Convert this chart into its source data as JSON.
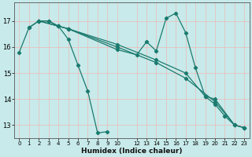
{
  "xlabel": "Humidex (Indice chaleur)",
  "background_color": "#c8eaea",
  "line_color": "#1a7a6e",
  "grid_color": "#f0b8b8",
  "xlim": [
    -0.5,
    23.5
  ],
  "ylim": [
    12.5,
    17.7
  ],
  "yticks": [
    13,
    14,
    15,
    16,
    17
  ],
  "xtick_positions": [
    0,
    1,
    2,
    3,
    4,
    5,
    6,
    7,
    8,
    9,
    10,
    12,
    13,
    14,
    15,
    16,
    17,
    18,
    19,
    20,
    21,
    22,
    23
  ],
  "xtick_labels": [
    "0",
    "1",
    "2",
    "3",
    "4",
    "5",
    "6",
    "7",
    "8",
    "9",
    "10",
    "12",
    "13",
    "14",
    "15",
    "16",
    "17",
    "18",
    "19",
    "20",
    "21",
    "22",
    "23"
  ],
  "lines": [
    {
      "x": [
        0,
        1,
        2,
        3,
        4,
        5,
        6,
        7,
        8,
        9
      ],
      "y": [
        15.8,
        16.75,
        17.0,
        17.0,
        16.8,
        16.3,
        15.3,
        14.3,
        12.7,
        12.75
      ]
    },
    {
      "x": [
        2,
        4,
        5,
        10,
        14,
        17,
        19,
        20,
        22,
        23
      ],
      "y": [
        17.0,
        16.8,
        16.7,
        16.1,
        15.5,
        15.0,
        14.1,
        14.0,
        13.0,
        12.9
      ]
    },
    {
      "x": [
        2,
        4,
        5,
        10,
        14,
        17,
        20,
        22,
        23
      ],
      "y": [
        17.0,
        16.8,
        16.7,
        16.0,
        15.4,
        14.8,
        13.9,
        13.0,
        12.9
      ]
    },
    {
      "x": [
        1,
        2,
        3,
        4,
        5,
        10,
        12,
        13,
        14,
        15,
        16,
        17,
        18,
        19,
        20,
        21,
        22,
        23
      ],
      "y": [
        16.75,
        17.0,
        17.0,
        16.8,
        16.7,
        15.9,
        15.7,
        16.2,
        15.85,
        17.1,
        17.3,
        16.55,
        15.2,
        14.1,
        13.8,
        13.35,
        13.0,
        12.9
      ]
    }
  ]
}
